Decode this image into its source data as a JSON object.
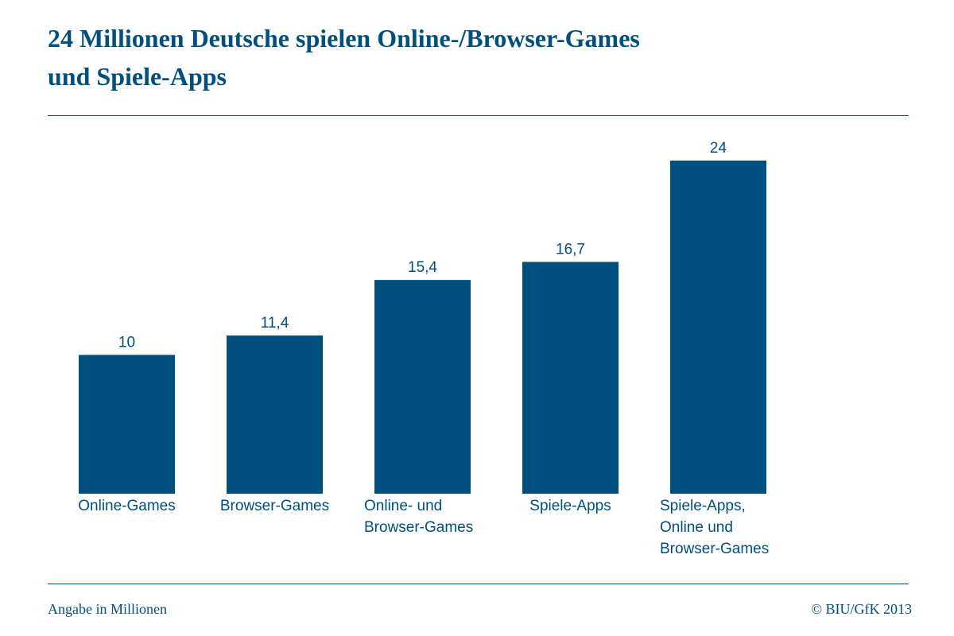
{
  "header": {
    "title_lines": [
      "24 Millionen Deutsche spielen Online-/Browser-Games",
      "und Spiele-Apps"
    ]
  },
  "chart_data": {
    "type": "bar",
    "title": "24 Millionen Deutsche spielen Online-/Browser-Games und Spiele-Apps",
    "categories": [
      [
        "Online-Games"
      ],
      [
        "Browser-Games"
      ],
      [
        "Online- und",
        "Browser-Games"
      ],
      [
        "Spiele-Apps"
      ],
      [
        "Spiele-Apps,",
        "Online und",
        "Browser-Games"
      ]
    ],
    "values": [
      10,
      11.4,
      15.4,
      16.7,
      24
    ],
    "value_labels": [
      "10",
      "11,4",
      "15,4",
      "16,7",
      "24"
    ],
    "ylim": [
      0,
      24
    ],
    "grid": false,
    "bar_color": "#00507f"
  },
  "footer": {
    "note": "Angabe in Millionen",
    "source": "© BIU/GfK 2013"
  },
  "colors": {
    "accent": "#00507f"
  }
}
